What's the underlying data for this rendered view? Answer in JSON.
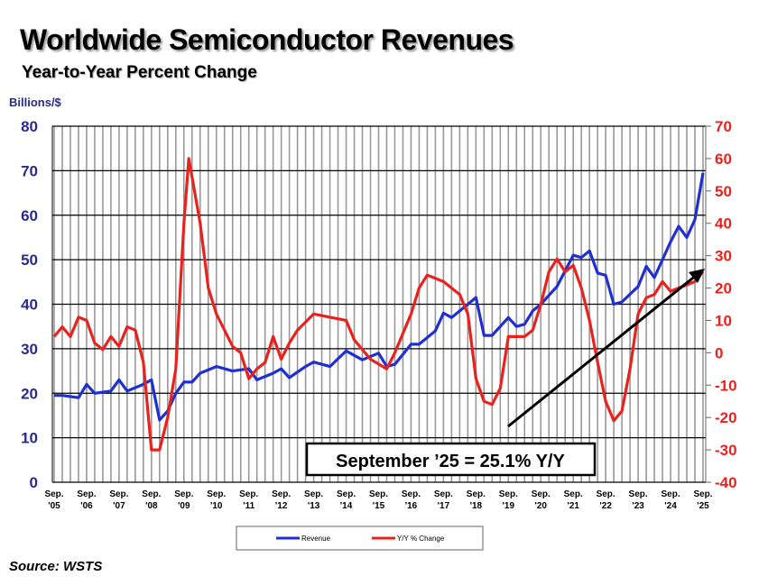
{
  "title": "Worldwide Semiconductor Revenues",
  "subtitle": "Year-to-Year Percent Change",
  "source": "Source: WSTS",
  "chart_data": {
    "type": "line",
    "ylabel_left": "Billions/$",
    "ylim_left": [
      0,
      80
    ],
    "ylim_right": [
      -40,
      70
    ],
    "yticks_left": [
      0,
      10,
      20,
      30,
      40,
      50,
      60,
      70,
      80
    ],
    "yticks_right": [
      -40,
      -30,
      -20,
      -10,
      0,
      10,
      20,
      30,
      40,
      50,
      60,
      70
    ],
    "xlim": [
      2005.75,
      2025.75
    ],
    "xticks": [
      [
        "Sep.",
        "'05"
      ],
      [
        "Sep.",
        "'06"
      ],
      [
        "Sep.",
        "'07"
      ],
      [
        "Sep.",
        "'08"
      ],
      [
        "Sep.",
        "'09"
      ],
      [
        "Sep.",
        "'10"
      ],
      [
        "Sep.",
        "'11"
      ],
      [
        "Sep.",
        "'12"
      ],
      [
        "Sep.",
        "'13"
      ],
      [
        "Sep.",
        "'14"
      ],
      [
        "Sep.",
        "'15"
      ],
      [
        "Sep.",
        "'16"
      ],
      [
        "Sep.",
        "'17"
      ],
      [
        "Sep.",
        "'18"
      ],
      [
        "Sep.",
        "'19"
      ],
      [
        "Sep.",
        "'20"
      ],
      [
        "Sep.",
        "'21"
      ],
      [
        "Sep.",
        "'22"
      ],
      [
        "Sep.",
        "'23"
      ],
      [
        "Sep.",
        "'24"
      ],
      [
        "Sep.",
        "'25"
      ]
    ],
    "grid": true,
    "legend_placement": "bottom",
    "annotation": "September ’25 = 25.1% Y/Y",
    "series": [
      {
        "name": "Revenue",
        "axis": "left",
        "color": "#1f2fd0",
        "x": [
          2005.75,
          2006.0,
          2006.5,
          2006.75,
          2007.0,
          2007.5,
          2007.75,
          2008.0,
          2008.5,
          2008.75,
          2009.0,
          2009.25,
          2009.5,
          2009.75,
          2010.0,
          2010.25,
          2010.75,
          2011.25,
          2011.75,
          2012.0,
          2012.5,
          2012.75,
          2013.0,
          2013.5,
          2013.75,
          2014.25,
          2014.75,
          2015.25,
          2015.75,
          2016.0,
          2016.25,
          2016.75,
          2017.0,
          2017.5,
          2017.75,
          2018.0,
          2018.5,
          2018.75,
          2019.0,
          2019.25,
          2019.75,
          2020.0,
          2020.25,
          2020.5,
          2020.75,
          2021.25,
          2021.75,
          2022.0,
          2022.25,
          2022.5,
          2022.75,
          2023.0,
          2023.25,
          2023.75,
          2024.0,
          2024.25,
          2024.75,
          2025.0,
          2025.25,
          2025.5,
          2025.75
        ],
        "values": [
          19.5,
          19.5,
          19,
          22,
          20,
          20.5,
          23,
          20.5,
          22,
          23,
          14,
          16,
          20,
          22.5,
          22.5,
          24.5,
          26,
          25,
          25.5,
          23,
          24.5,
          25.5,
          23.5,
          26,
          27,
          26,
          29.5,
          27.5,
          29,
          26,
          26.5,
          31,
          31,
          34,
          38,
          37,
          40,
          41.5,
          33,
          33,
          37,
          35,
          35.5,
          38.5,
          40,
          44,
          51,
          50.5,
          52,
          47,
          46.5,
          40,
          40.5,
          44,
          48.5,
          46,
          54,
          57.5,
          55,
          59,
          69.5
        ]
      },
      {
        "name": "Y/Y % Change",
        "axis": "right",
        "color": "#e8221c",
        "x": [
          2005.75,
          2006.0,
          2006.25,
          2006.5,
          2006.75,
          2007.0,
          2007.25,
          2007.5,
          2007.75,
          2008.0,
          2008.25,
          2008.5,
          2008.75,
          2009.0,
          2009.25,
          2009.5,
          2009.75,
          2009.9,
          2010.25,
          2010.5,
          2010.75,
          2011.25,
          2011.5,
          2011.75,
          2012.0,
          2012.25,
          2012.5,
          2012.75,
          2013.0,
          2013.25,
          2013.75,
          2014.25,
          2014.75,
          2015.0,
          2015.5,
          2016.0,
          2016.25,
          2016.75,
          2017.0,
          2017.25,
          2017.75,
          2018.25,
          2018.5,
          2018.75,
          2019.0,
          2019.25,
          2019.5,
          2019.75,
          2020.25,
          2020.5,
          2020.75,
          2021.0,
          2021.25,
          2021.5,
          2021.75,
          2022.0,
          2022.25,
          2022.5,
          2022.75,
          2023.0,
          2023.25,
          2023.5,
          2023.75,
          2024.0,
          2024.25,
          2024.5,
          2024.75,
          2025.0,
          2025.25,
          2025.5,
          2025.75
        ],
        "values": [
          5,
          8,
          5,
          11,
          10,
          3,
          1,
          5,
          2,
          8,
          7,
          -3,
          -30,
          -30,
          -20,
          -5,
          40,
          60,
          40,
          20,
          12,
          2,
          0,
          -8,
          -5,
          -3,
          5,
          -2,
          3,
          7,
          12,
          11,
          10,
          4,
          -2,
          -5,
          0,
          12,
          20,
          24,
          22,
          18,
          12,
          -8,
          -15,
          -16,
          -11,
          5,
          5,
          7,
          15,
          25,
          29,
          25,
          27,
          20,
          10,
          -3,
          -15,
          -21,
          -18,
          -5,
          12,
          17,
          18,
          22,
          19,
          20,
          21,
          22,
          25.1
        ]
      }
    ]
  }
}
